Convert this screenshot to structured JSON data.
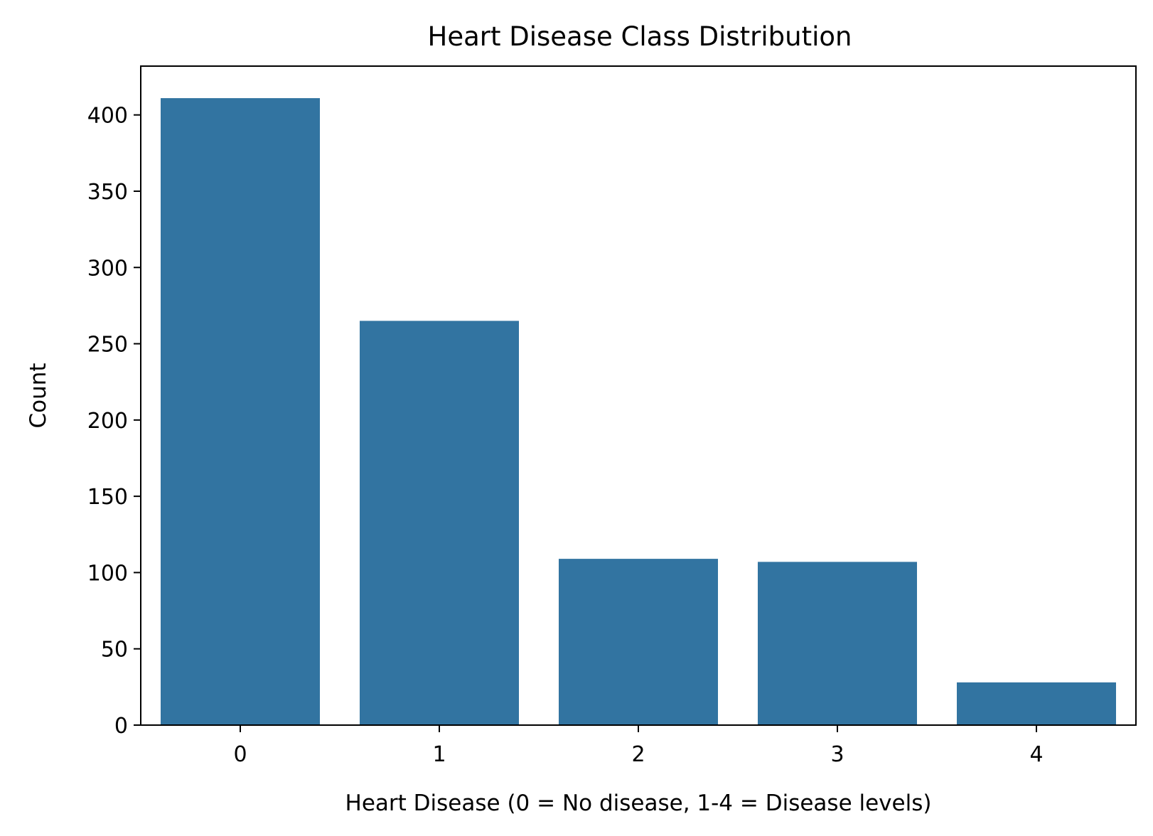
{
  "chart_data": {
    "type": "bar",
    "title": "Heart Disease Class Distribution",
    "xlabel": "Heart Disease (0 = No disease, 1-4 = Disease levels)",
    "ylabel": "Count",
    "categories": [
      "0",
      "1",
      "2",
      "3",
      "4"
    ],
    "values": [
      411,
      265,
      109,
      107,
      28
    ],
    "ylim": [
      0,
      432
    ],
    "yticks": [
      0,
      50,
      100,
      150,
      200,
      250,
      300,
      350,
      400
    ],
    "bar_color": "#3274a1",
    "grid": false,
    "legend": "none"
  }
}
